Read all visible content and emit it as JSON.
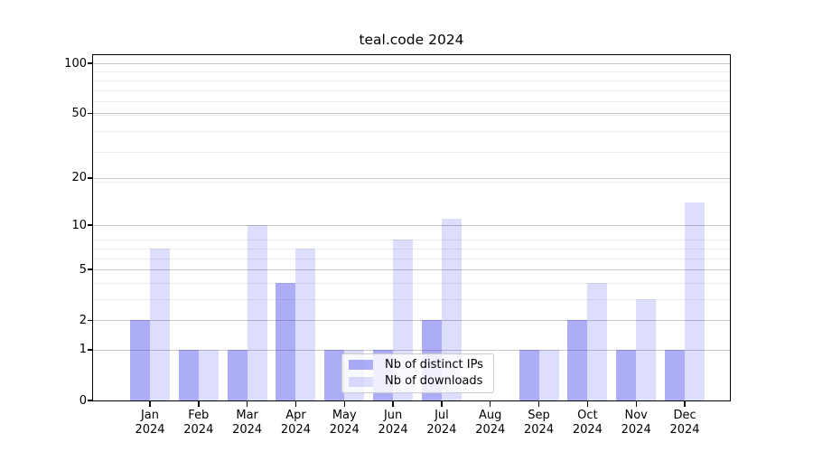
{
  "chart_data": {
    "type": "bar",
    "title": "teal.code 2024",
    "categories": [
      "Jan 2024",
      "Feb 2024",
      "Mar 2024",
      "Apr 2024",
      "May 2024",
      "Jun 2024",
      "Jul 2024",
      "Aug 2024",
      "Sep 2024",
      "Oct 2024",
      "Nov 2024",
      "Dec 2024"
    ],
    "series": [
      {
        "name": "Nb of distinct IPs",
        "color": "#1c1ce8",
        "alpha": 0.36,
        "values": [
          2,
          1,
          1,
          4,
          1,
          1,
          2,
          0,
          1,
          2,
          1,
          1
        ]
      },
      {
        "name": "Nb of downloads",
        "color": "#1c1ce8",
        "alpha": 0.15,
        "values": [
          7,
          1,
          10,
          7,
          1,
          8,
          11,
          0,
          1,
          4,
          3,
          14
        ]
      }
    ],
    "y_axis": {
      "scale": "log1p",
      "ticks": [
        0,
        1,
        2,
        5,
        10,
        20,
        50,
        100
      ],
      "minor_gridlines_1plusv": [
        2,
        3,
        4,
        5,
        6,
        7,
        8,
        9,
        20,
        30,
        40,
        50,
        60,
        70,
        80,
        90
      ],
      "max_tick": 100
    },
    "x_axis": {
      "tick_label_format": "month over year"
    },
    "legend": {
      "position": "lower center-left",
      "entries": [
        "Nb of distinct IPs",
        "Nb of downloads"
      ]
    },
    "grid": {
      "major_color": "#c6c6c6",
      "minor_color": "#ececec"
    },
    "axes_color": "#000000",
    "background": "#ffffff"
  }
}
